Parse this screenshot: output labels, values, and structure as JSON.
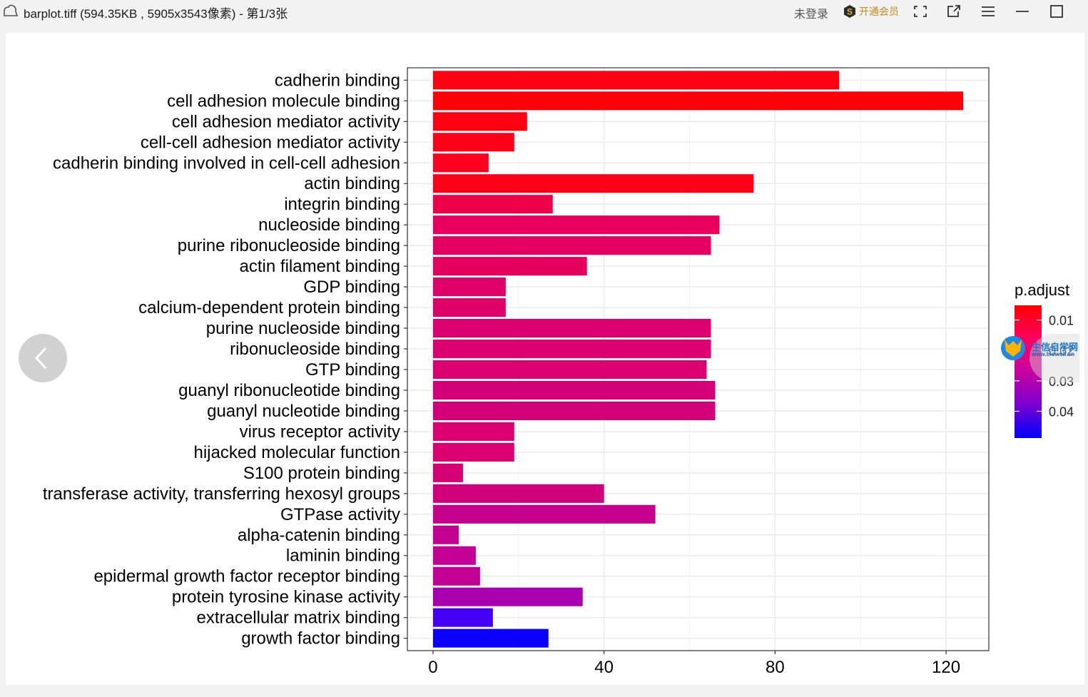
{
  "window": {
    "title": "barplot.tiff (594.35KB , 5905x3543像素) - 第1/3张",
    "login_label": "未登录",
    "vip_label": "开通会员",
    "icons": {
      "app": "cloud-icon",
      "vip": "vip-coin-icon",
      "fullscreen": "fullscreen-icon",
      "share": "share-icon",
      "menu": "menu-icon",
      "minimize": "minimize-icon",
      "maximize": "maximize-icon"
    }
  },
  "viewer": {
    "prev_icon": "chevron-left-icon",
    "watermark_text": "生信自学网",
    "watermark_url": "www.biowolf.cn"
  },
  "chart_data": {
    "type": "bar",
    "orientation": "horizontal",
    "categories": [
      "cadherin binding",
      "cell adhesion molecule binding",
      "cell adhesion mediator activity",
      "cell-cell adhesion mediator activity",
      "cadherin binding involved in cell-cell adhesion",
      "actin binding",
      "integrin binding",
      "nucleoside binding",
      "purine ribonucleoside binding",
      "actin filament binding",
      "GDP binding",
      "calcium-dependent protein binding",
      "purine nucleoside binding",
      "ribonucleoside binding",
      "GTP binding",
      "guanyl ribonucleotide binding",
      "guanyl nucleotide binding",
      "virus receptor activity",
      "hijacked molecular function",
      "S100 protein binding",
      "transferase activity, transferring hexosyl groups",
      "GTPase activity",
      "alpha-catenin binding",
      "laminin binding",
      "epidermal growth factor receptor binding",
      "protein tyrosine kinase activity",
      "extracellular matrix binding",
      "growth factor binding"
    ],
    "values": [
      95,
      124,
      22,
      19,
      13,
      75,
      28,
      67,
      65,
      36,
      17,
      17,
      65,
      65,
      64,
      66,
      66,
      19,
      19,
      7,
      40,
      52,
      6,
      10,
      11,
      35,
      14,
      27
    ],
    "colors": [
      "#ff0010",
      "#ff0008",
      "#ff0010",
      "#fe0018",
      "#fe0020",
      "#fc0018",
      "#ee0048",
      "#e8005c",
      "#e40060",
      "#e4005c",
      "#de0068",
      "#de0068",
      "#dc0070",
      "#dc0070",
      "#dc0070",
      "#d40078",
      "#d40078",
      "#dc0070",
      "#dc0070",
      "#d60074",
      "#d0007c",
      "#c4008c",
      "#c40090",
      "#c20094",
      "#c20094",
      "#a800b0",
      "#4400f4",
      "#0a00ff"
    ],
    "x_ticks": [
      0,
      40,
      80,
      120
    ],
    "xlim": [
      -6,
      130
    ],
    "xlabel": "",
    "ylabel": "",
    "grid": true,
    "legend": {
      "title": "p.adjust",
      "placement": "right",
      "ticks": [
        "0.01",
        "0.02",
        "0.03",
        "0.04"
      ],
      "tick_values": [
        0.01,
        0.02,
        0.03,
        0.04
      ],
      "range": [
        0.0052,
        0.0488
      ],
      "gradient": [
        "#ff0000",
        "#ff0060",
        "#c800a0",
        "#7a00d0",
        "#0000ff"
      ]
    }
  }
}
